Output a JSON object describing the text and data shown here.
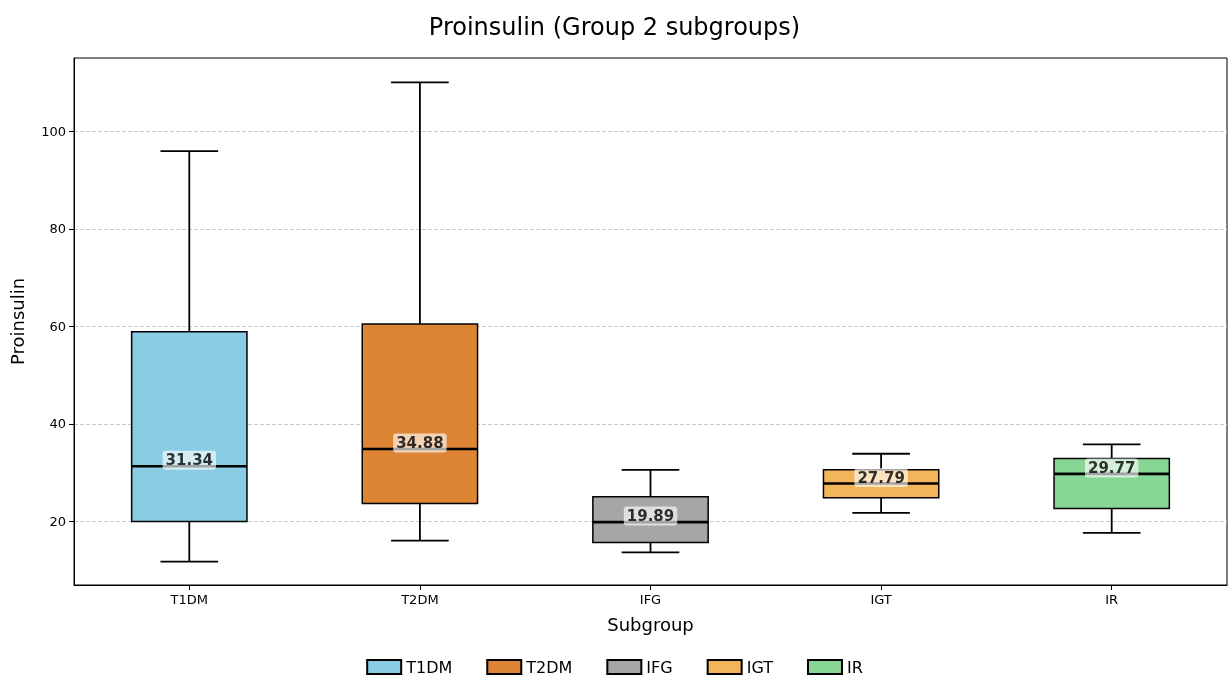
{
  "chart_data": {
    "type": "box",
    "title": "Proinsulin (Group 2 subgroups)",
    "xlabel": "Subgroup",
    "ylabel": "Proinsulin",
    "categories": [
      "T1DM",
      "T2DM",
      "IFG",
      "IGT",
      "IR"
    ],
    "series": [
      {
        "name": "T1DM",
        "color": "#89cce4",
        "boxes": [
          {
            "low": 11.8,
            "q1": 20,
            "median": 31.34,
            "q3": 58.9,
            "high": 95.9
          },
          null,
          null,
          null,
          null
        ]
      },
      {
        "name": "T2DM",
        "color": "#dd8535",
        "boxes": [
          null,
          {
            "low": 16.1,
            "q1": 23.7,
            "median": 34.88,
            "q3": 60.5,
            "high": 110
          },
          null,
          null,
          null
        ]
      },
      {
        "name": "IFG",
        "color": "#a6a6a6",
        "boxes": [
          null,
          null,
          {
            "low": 13.7,
            "q1": 15.7,
            "median": 19.89,
            "q3": 25.1,
            "high": 30.6
          },
          null,
          null
        ]
      },
      {
        "name": "IGT",
        "color": "#f2b55a",
        "boxes": [
          null,
          null,
          null,
          {
            "low": 21.8,
            "q1": 24.9,
            "median": 27.79,
            "q3": 30.6,
            "high": 33.9
          },
          null
        ]
      },
      {
        "name": "IR",
        "color": "#88d695",
        "boxes": [
          null,
          null,
          null,
          null,
          {
            "low": 17.7,
            "q1": 22.7,
            "median": 29.77,
            "q3": 32.9,
            "high": 35.8
          }
        ]
      }
    ],
    "value_labels": [
      "31.34",
      "34.88",
      "19.89",
      "27.79",
      "29.77"
    ],
    "ylim": [
      7,
      115
    ],
    "yticks": [
      20,
      40,
      60,
      80,
      100
    ],
    "grid": "y",
    "legend": "bottom"
  }
}
